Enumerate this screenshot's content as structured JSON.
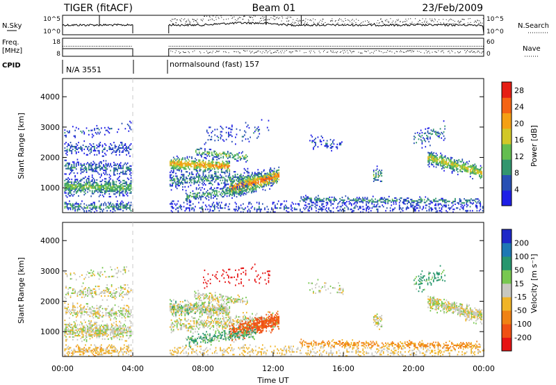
{
  "header": {
    "station": "TIGER (fitACF)",
    "beam": "Beam 01",
    "date": "23/Feb/2009"
  },
  "noise_panel": {
    "left_label": "N.Sky",
    "right_label": "N.Search",
    "ticks": [
      "10^5",
      "10^0"
    ]
  },
  "freq_panel": {
    "left_label_line1": "Freq.",
    "left_label_line2": "[MHz]",
    "left_ticks": [
      "18",
      "8"
    ],
    "right_label": "Nave",
    "right_ticks": [
      "60",
      "0"
    ]
  },
  "cpid_panel": {
    "label": "CPID",
    "segment1": "N/A 3551",
    "segment2": "normalsound (fast) 157"
  },
  "chart_data": [
    {
      "type": "heatmap",
      "name": "power",
      "ylabel": "Slant Range [km]",
      "xlabel": "",
      "y_ticks": [
        1000,
        2000,
        3000,
        4000
      ],
      "ylim": [
        180,
        4600
      ],
      "x_hours_lim": [
        0,
        24
      ],
      "colorbar": {
        "label": "Power [dB]",
        "ticks": [
          4,
          8,
          12,
          16,
          20,
          24,
          28
        ],
        "range": [
          0,
          30
        ],
        "colors": [
          "#1e1ee6",
          "#2850b4",
          "#32966e",
          "#64be50",
          "#d2c828",
          "#f5a014",
          "#f56414",
          "#e61e14"
        ]
      }
    },
    {
      "type": "heatmap",
      "name": "velocity",
      "ylabel": "Slant Range [km]",
      "xlabel": "Time UT",
      "y_ticks": [
        1000,
        2000,
        3000,
        4000
      ],
      "ylim": [
        180,
        4600
      ],
      "x_hours_lim": [
        0,
        24
      ],
      "x_ticks": [
        "00:00",
        "04:00",
        "08:00",
        "12:00",
        "16:00",
        "20:00",
        "00:00"
      ],
      "colorbar": {
        "label": "Velocity [m s⁻¹]",
        "ticks": [
          "200",
          "100",
          "50",
          "15",
          "-15",
          "-50",
          "-100",
          "-200"
        ],
        "colors": [
          "#1e28c8",
          "#1e78b4",
          "#28966e",
          "#78c850",
          "#c8c8c0",
          "#f0b428",
          "#f08214",
          "#f05014",
          "#e61414"
        ]
      }
    }
  ],
  "data_gap_hours": [
    4.0,
    6.05
  ]
}
